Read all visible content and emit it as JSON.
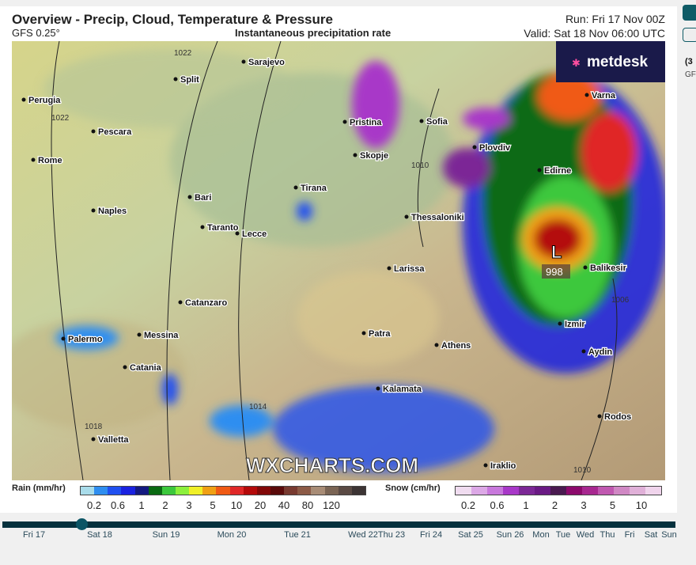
{
  "header": {
    "title": "Overview - Precip, Cloud, Temperature & Pressure",
    "model": "GFS 0.25°",
    "parameter": "Instantaneous precipitation rate",
    "run": "Run: Fri 17 Nov 00Z",
    "valid": "Valid: Sat 18 Nov 06:00 UTC"
  },
  "brand": {
    "logo": "metdesk",
    "watermark": "WXCHARTS.COM"
  },
  "map": {
    "cities": [
      [
        "Perugia"
      ],
      [
        "Pescara"
      ],
      [
        "Rome"
      ],
      [
        "Naples"
      ],
      [
        "Bari"
      ],
      [
        "Taranto"
      ],
      [
        "Lecce"
      ],
      [
        "Catanzaro"
      ],
      [
        "Palermo"
      ],
      [
        "Messina"
      ],
      [
        "Catania"
      ],
      [
        "Valletta"
      ],
      [
        "Split"
      ],
      [
        "Sarajevo"
      ],
      [
        "Pristina"
      ],
      [
        "Sofia"
      ],
      [
        "Skopje"
      ],
      [
        "Plovdiv"
      ],
      [
        "Tirana"
      ],
      [
        "Thessaloniki"
      ],
      [
        "Edirne"
      ],
      [
        "Varna"
      ],
      [
        "Larissa"
      ],
      [
        "Balikesir"
      ],
      [
        "Patra"
      ],
      [
        "Athens"
      ],
      [
        "Izmir"
      ],
      [
        "Aydin"
      ],
      [
        "Kalamata"
      ],
      [
        "Rodos"
      ],
      [
        "Iraklio"
      ]
    ],
    "low": {
      "symbol": "L",
      "value": "998"
    },
    "isobars": [
      "1022",
      "1022",
      "1010",
      "1014",
      "1018",
      "1006",
      "1010"
    ]
  },
  "legend": {
    "rain_label": "Rain (mm/hr)",
    "rain_ticks": [
      "0.2",
      "0.6",
      "1",
      "2",
      "3",
      "5",
      "10",
      "20",
      "40",
      "80",
      "120"
    ],
    "rain_colors": [
      "#a9dcea",
      "#2f8ef0",
      "#2050f0",
      "#1a22e0",
      "#141a80",
      "#0a6a12",
      "#3cc83c",
      "#8cf03c",
      "#f0f028",
      "#f0a014",
      "#f05a14",
      "#e02828",
      "#b40a0a",
      "#820808",
      "#5a0a0a",
      "#783a30",
      "#8c5a46",
      "#a88c76",
      "#7a6454",
      "#5a4a44",
      "#3c3434"
    ],
    "snow_label": "Snow (cm/hr)",
    "snow_ticks": [
      "0.2",
      "0.6",
      "1",
      "2",
      "3",
      "5",
      "10"
    ],
    "snow_colors": [
      "#f0dcf0",
      "#dca8e6",
      "#c878dc",
      "#a838c8",
      "#7c2896",
      "#6a1a84",
      "#4a1a50",
      "#8c0a6c",
      "#a82890",
      "#c058b0",
      "#d088c4",
      "#e0b0d8",
      "#f0d4ec"
    ]
  },
  "timeline": {
    "days": [
      "Fri 17",
      "Sat 18",
      "Sun 19",
      "Mon 20",
      "Tue 21",
      "Wed 22",
      "Thu 23",
      "Fri 24",
      "Sat 25",
      "Sun 26",
      "Mon",
      "Tue",
      "Wed",
      "Thu",
      "Fri",
      "Sat",
      "Sun"
    ],
    "selected": "Sat 18"
  },
  "side": {
    "text1": "(3",
    "text2": "GF"
  }
}
